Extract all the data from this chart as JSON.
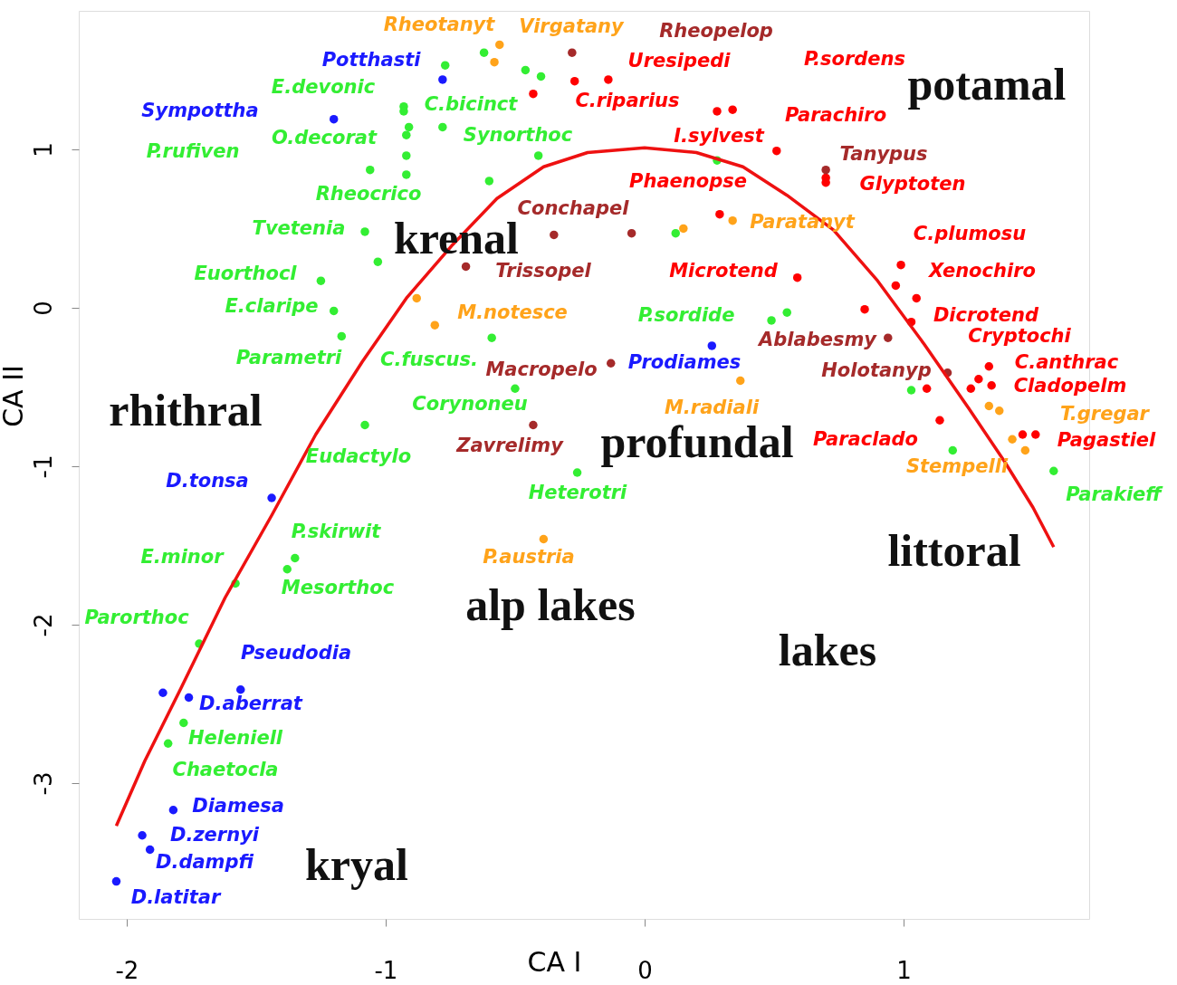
{
  "chart_data": {
    "type": "scatter",
    "xlabel": "CA I",
    "ylabel": "CA II",
    "xlim": [
      -2.185,
      1.717
    ],
    "ylim": [
      -3.857,
      1.874
    ],
    "xticks": [
      -2,
      -1,
      0,
      1
    ],
    "yticks": [
      -3,
      -2,
      -1,
      0,
      1
    ],
    "grid": false,
    "marker": "circle",
    "series": [
      {
        "color": "#33ee33",
        "x": [
          -0.77,
          -0.62,
          -0.46,
          -0.4,
          -0.93,
          -0.93,
          -0.91,
          -0.92,
          -0.78,
          -0.92,
          -0.92,
          -1.06,
          -0.6,
          -0.41,
          0.28,
          -1.08,
          -1.03,
          -1.25,
          -1.2,
          -1.17,
          -0.59,
          -0.5,
          -1.08,
          0.12,
          0.49,
          0.55,
          -0.26,
          -1.58,
          -1.35,
          -1.38,
          -1.72,
          -1.78,
          -1.84,
          1.03,
          1.19,
          1.58
        ],
        "values": [
          1.53,
          1.61,
          1.5,
          1.46,
          1.27,
          1.24,
          1.14,
          1.09,
          1.14,
          0.96,
          0.84,
          0.87,
          0.8,
          0.96,
          0.93,
          0.48,
          0.29,
          0.17,
          -0.02,
          -0.18,
          -0.19,
          -0.51,
          -0.74,
          0.47,
          -0.08,
          -0.03,
          -1.04,
          -1.74,
          -1.58,
          -1.65,
          -2.12,
          -2.62,
          -2.75,
          -0.52,
          -0.9,
          -1.03
        ]
      },
      {
        "color": "#1a1aff",
        "x": [
          -0.78,
          -1.2,
          0.26,
          -1.44,
          -1.86,
          -1.76,
          -1.56,
          -1.82,
          -1.94,
          -1.91,
          -2.04
        ],
        "values": [
          1.44,
          1.19,
          -0.24,
          -1.2,
          -2.43,
          -2.46,
          -2.41,
          -3.17,
          -3.33,
          -3.42,
          -3.62
        ]
      },
      {
        "color": "#ffa31a",
        "x": [
          -0.56,
          -0.58,
          -0.88,
          -0.81,
          0.15,
          0.34,
          0.37,
          -0.39,
          1.33,
          1.37,
          1.42,
          1.47
        ],
        "values": [
          1.66,
          1.55,
          0.06,
          -0.11,
          0.5,
          0.55,
          -0.46,
          -1.46,
          -0.62,
          -0.65,
          -0.83,
          -0.9
        ]
      },
      {
        "color": "#ff0000",
        "x": [
          -0.43,
          -0.27,
          -0.14,
          0.28,
          0.34,
          0.51,
          0.7,
          0.7,
          0.29,
          0.59,
          0.99,
          0.97,
          1.05,
          0.85,
          1.03,
          1.09,
          1.29,
          1.33,
          1.34,
          1.26,
          1.14,
          1.46,
          1.51
        ],
        "values": [
          1.35,
          1.43,
          1.44,
          1.24,
          1.25,
          0.99,
          0.82,
          0.79,
          0.59,
          0.19,
          0.27,
          0.14,
          0.06,
          -0.01,
          -0.09,
          -0.51,
          -0.45,
          -0.37,
          -0.49,
          -0.51,
          -0.71,
          -0.8,
          -0.8
        ]
      },
      {
        "color": "#a52a2a",
        "x": [
          -0.28,
          0.7,
          -0.35,
          -0.05,
          -0.69,
          -0.13,
          0.94,
          1.17,
          -0.43
        ],
        "values": [
          1.61,
          0.87,
          0.46,
          0.47,
          0.26,
          -0.35,
          -0.19,
          -0.41,
          -0.74
        ]
      },
      {
        "type": "line",
        "marker": "none",
        "color": "#ee1111",
        "x": [
          -2.04,
          -1.93,
          -1.79,
          -1.62,
          -1.44,
          -1.27,
          -1.09,
          -0.92,
          -0.74,
          -0.57,
          -0.39,
          -0.22,
          0.0,
          0.2,
          0.38,
          0.55,
          0.73,
          0.9,
          1.08,
          1.25,
          1.39,
          1.5,
          1.58
        ],
        "values": [
          -3.27,
          -2.86,
          -2.4,
          -1.83,
          -1.31,
          -0.8,
          -0.34,
          0.06,
          0.4,
          0.69,
          0.89,
          0.98,
          1.01,
          0.98,
          0.89,
          0.71,
          0.49,
          0.17,
          -0.23,
          -0.63,
          -0.97,
          -1.26,
          -1.51
        ]
      }
    ],
    "annotations": [
      "potamal",
      "krenal",
      "rhithral",
      "profundal",
      "littoral",
      "alp lakes",
      "lakes",
      "kryal",
      "Rheotanyt",
      "Virgatany",
      "Rheopelop",
      "Potthasti",
      "Uresipedi",
      "P.sordens",
      "E.devonic",
      "C.bicinct",
      "C.riparius",
      "Sympottha",
      "Parachiro",
      "O.decorat",
      "Synorthoc",
      "I.sylvest",
      "P.rufiven",
      "Tanypus",
      "Phaenopse",
      "Glyptoten",
      "Rheocrico",
      "Conchapel",
      "Paratanyt",
      "Tvetenia",
      "C.plumosu",
      "Trissopel",
      "Microtend",
      "Xenochiro",
      "Euorthocl",
      "E.claripe",
      "M.notesce",
      "P.sordide",
      "Dicrotend",
      "Ablabesmy",
      "Cryptochi",
      "Parametri",
      "C.fuscus.",
      "Macropelo",
      "Prodiames",
      "Holotanyp",
      "C.anthrac",
      "Cladopelm",
      "Corynoneu",
      "M.radiali",
      "T.gregar",
      "Paraclado",
      "Pagastiel",
      "Zavrelimy",
      "Eudactylo",
      "Stempelli",
      "D.tonsa",
      "Heterotri",
      "Parakieff",
      "P.skirwit",
      "P.austria",
      "E.minor",
      "Mesorthoc",
      "Parorthoc",
      "Pseudodia",
      "D.aberrat",
      "Heleniell",
      "Chaetocla",
      "Diamesa",
      "D.zernyi",
      "D.dampfi",
      "D.latitar"
    ]
  }
}
